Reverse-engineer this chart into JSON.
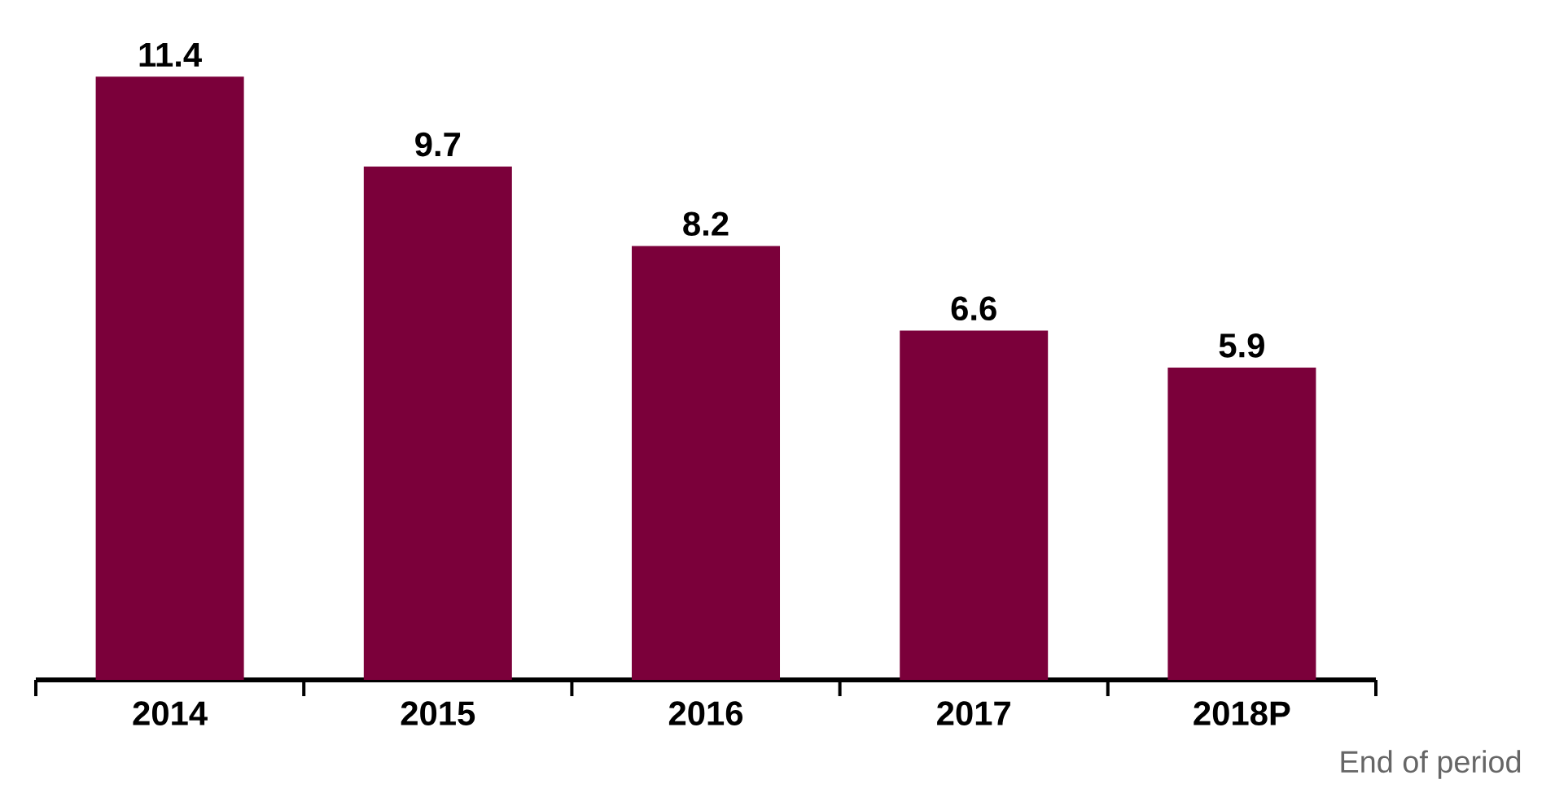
{
  "chart_data": {
    "type": "bar",
    "categories": [
      "2014",
      "2015",
      "2016",
      "2017",
      "2018P"
    ],
    "values": [
      11.4,
      9.7,
      8.2,
      6.6,
      5.9
    ],
    "color": "#7b003a",
    "data_labels": true,
    "annotations": [
      "End of period"
    ]
  }
}
